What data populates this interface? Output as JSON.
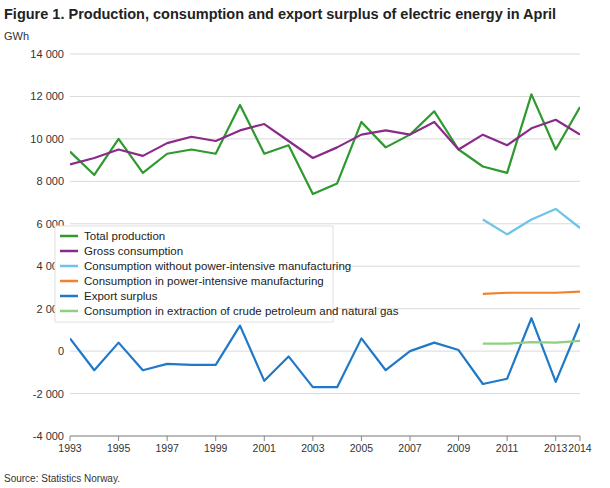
{
  "chart_data": {
    "type": "line",
    "title": "Figure 1. Production, consumption and export surplus of electric energy in April",
    "y_label": "GWh",
    "source": "Source: Statistics Norway.",
    "x": [
      1993,
      1994,
      1995,
      1996,
      1997,
      1998,
      1999,
      2000,
      2001,
      2002,
      2003,
      2004,
      2005,
      2006,
      2007,
      2008,
      2009,
      2010,
      2011,
      2012,
      2013,
      2014
    ],
    "xlim": [
      1993,
      2014
    ],
    "xticks": [
      1993,
      1995,
      1997,
      1999,
      2001,
      2003,
      2005,
      2007,
      2009,
      2011,
      2013,
      2014
    ],
    "ylim": [
      -4000,
      14000
    ],
    "yticks": [
      {
        "value": -4000,
        "label": "-4 000"
      },
      {
        "value": -2000,
        "label": "-2 000"
      },
      0,
      {
        "value": 2000,
        "label": "2 000"
      },
      {
        "value": 4000,
        "label": "4 000"
      },
      {
        "value": 6000,
        "label": "6 000"
      },
      {
        "value": 8000,
        "label": "8 000"
      },
      {
        "value": 10000,
        "label": "10 000"
      },
      {
        "value": 12000,
        "label": "12 000"
      },
      {
        "value": 14000,
        "label": "14 000"
      }
    ],
    "grid": true,
    "legend": "left",
    "series": [
      {
        "name": "Total production",
        "color": "#2e9a2e",
        "values": [
          9400,
          8300,
          10000,
          8400,
          9300,
          9500,
          9300,
          11600,
          9300,
          9700,
          7400,
          7900,
          10800,
          9600,
          10200,
          11300,
          9500,
          8700,
          8400,
          12100,
          9500,
          11500
        ]
      },
      {
        "name": "Gross consumption",
        "color": "#8a2a8a",
        "values": [
          8800,
          9100,
          9500,
          9200,
          9800,
          10100,
          9900,
          10400,
          10700,
          9900,
          9100,
          9600,
          10200,
          10400,
          10200,
          10800,
          9500,
          10200,
          9700,
          10500,
          10900,
          10200
        ]
      },
      {
        "name": "Consumption without power-intensive manufacturing",
        "color": "#6ec3e8",
        "values": [
          null,
          null,
          null,
          null,
          null,
          null,
          null,
          null,
          null,
          null,
          null,
          null,
          null,
          null,
          null,
          null,
          null,
          6200,
          5500,
          6200,
          6700,
          5800
        ]
      },
      {
        "name": "Consumption in power-intensive manufacturing",
        "color": "#f0822c",
        "values": [
          null,
          null,
          null,
          null,
          null,
          null,
          null,
          null,
          null,
          null,
          null,
          null,
          null,
          null,
          null,
          null,
          null,
          2700,
          2750,
          2750,
          2750,
          2800
        ]
      },
      {
        "name": "Export surplus",
        "color": "#1f78c8",
        "values": [
          600,
          -900,
          400,
          -900,
          -600,
          -650,
          -650,
          1200,
          -1400,
          -250,
          -1700,
          -1700,
          600,
          -900,
          0,
          400,
          50,
          -1550,
          -1300,
          1550,
          -1450,
          1300
        ]
      },
      {
        "name": "Consumption in extraction of crude petroleum and natural gas",
        "color": "#8fcf7f",
        "values": [
          null,
          null,
          null,
          null,
          null,
          null,
          null,
          null,
          null,
          null,
          null,
          null,
          null,
          null,
          null,
          null,
          null,
          350,
          350,
          420,
          400,
          480
        ]
      }
    ]
  }
}
